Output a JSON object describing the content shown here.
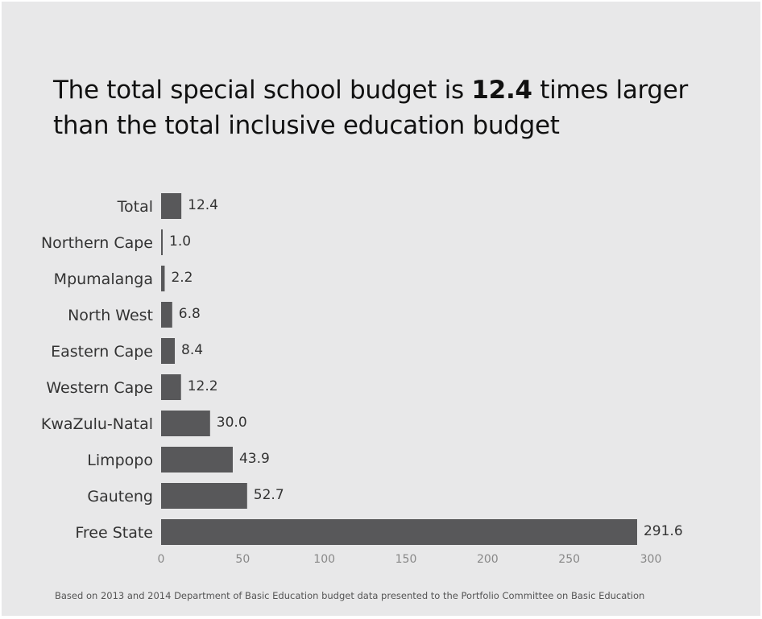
{
  "title": {
    "before": "The total special school budget is ",
    "highlight": "12.4",
    "after": " times larger than the total inclusive education budget"
  },
  "footer": "Based on 2013 and 2014 Department of Basic Education budget data presented to the Portfolio Committee on Basic Education",
  "colors": {
    "background": "#e8e8e9",
    "bar": "#58585a"
  },
  "chart_data": {
    "type": "bar",
    "orientation": "horizontal",
    "categories": [
      "Total",
      "Northern Cape",
      "Mpumalanga",
      "North West",
      "Eastern Cape",
      "Western Cape",
      "KwaZulu-Natal",
      "Limpopo",
      "Gauteng",
      "Free State"
    ],
    "values": [
      12.4,
      1.0,
      2.2,
      6.8,
      8.4,
      12.2,
      30.0,
      43.9,
      52.7,
      291.6
    ],
    "value_labels": [
      "12.4",
      "1.0",
      "2.2",
      "6.8",
      "8.4",
      "12.2",
      "30.0",
      "43.9",
      "52.7",
      "291.6"
    ],
    "xlim": [
      0,
      300
    ],
    "xticks": [
      "0",
      "50",
      "100",
      "150",
      "200",
      "250",
      "300"
    ],
    "grid": false,
    "legend": "none"
  }
}
